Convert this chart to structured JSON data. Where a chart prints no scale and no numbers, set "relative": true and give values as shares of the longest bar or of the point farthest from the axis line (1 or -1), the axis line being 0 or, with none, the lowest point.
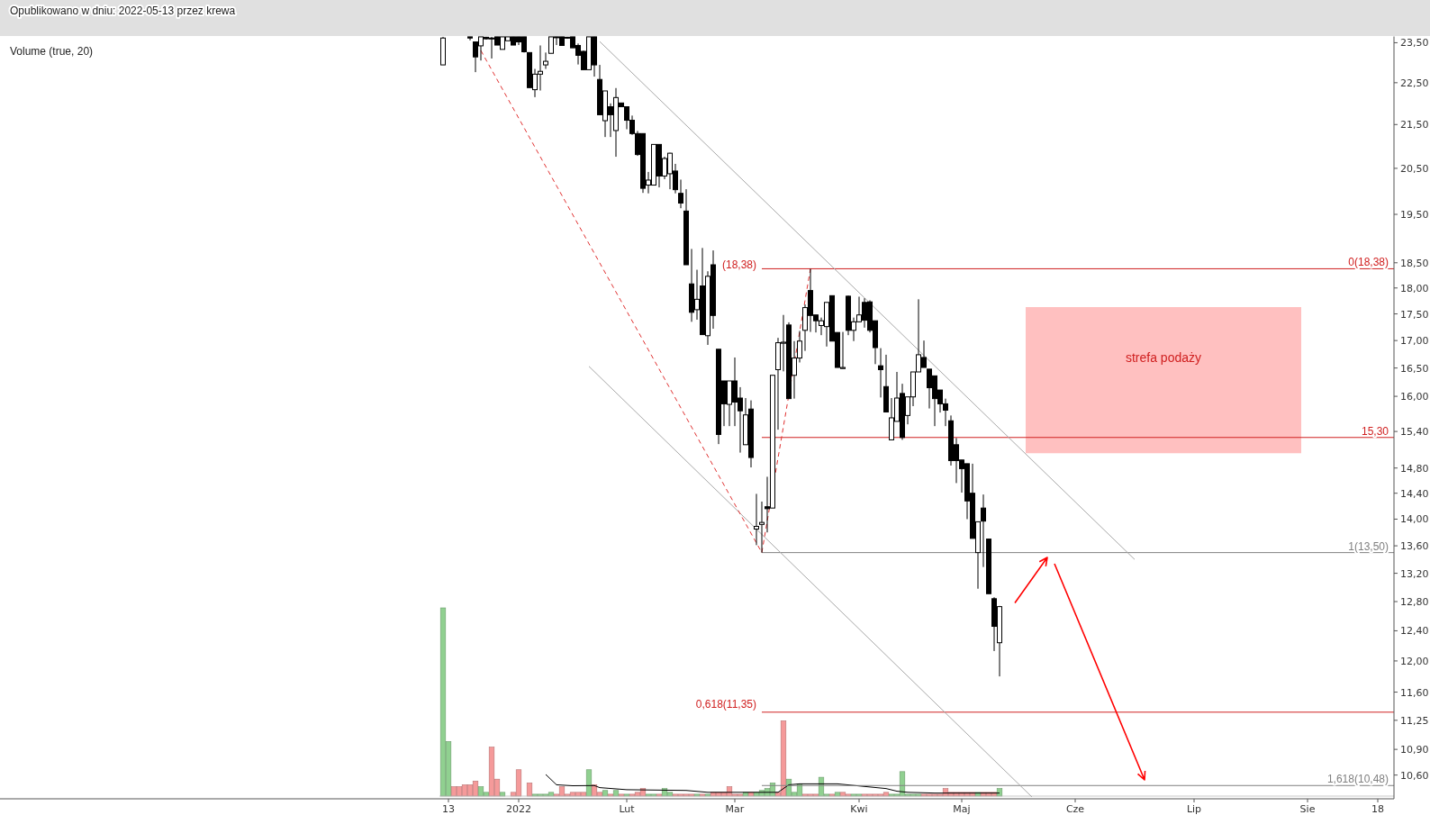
{
  "chart_data": [
    {
      "type": "candlestick",
      "log": "y",
      "grid": false,
      "ylim": [
        10.33,
        23.66
      ],
      "categories": [
        null,
        "13",
        null,
        null,
        null,
        null,
        null,
        null,
        null,
        null,
        null,
        null,
        null,
        null,
        "2022",
        null,
        null,
        null,
        null,
        null,
        null,
        null,
        null,
        null,
        null,
        null,
        null,
        null,
        null,
        null,
        null,
        null,
        null,
        null,
        "Lut",
        null,
        null,
        null,
        null,
        null,
        null,
        null,
        null,
        null,
        null,
        null,
        null,
        null,
        null,
        null,
        null,
        null,
        null,
        null,
        "Mar",
        null,
        null,
        null,
        null,
        null,
        null,
        null,
        null,
        null,
        null,
        null,
        null,
        null,
        null,
        null,
        null,
        null,
        null,
        null,
        null,
        null,
        null,
        "Kwi",
        null,
        null,
        null,
        null,
        null,
        null,
        null,
        null,
        null,
        null,
        null,
        null,
        null,
        null,
        null,
        null,
        null,
        null,
        "Maj",
        null,
        null,
        null,
        null,
        null,
        null,
        null,
        null,
        null,
        null,
        null,
        null,
        null,
        null,
        null,
        null,
        null,
        null,
        null,
        null,
        "Cze",
        null,
        null,
        null,
        null,
        null,
        null,
        null,
        null,
        null,
        null,
        null,
        null,
        null,
        null,
        null,
        null,
        null,
        null,
        null,
        null,
        null,
        "Lip",
        null,
        null,
        null,
        null,
        null,
        null,
        null,
        null,
        null,
        null,
        null,
        null,
        null,
        null,
        null,
        null,
        null,
        null,
        null,
        null,
        "Sie",
        null,
        null,
        null,
        null,
        null,
        null,
        null,
        null,
        null,
        null,
        null,
        null,
        "18",
        null,
        null,
        null
      ],
      "yticks": [
        {
          "value": 23.5,
          "label": "23,50"
        },
        {
          "value": 22.5,
          "label": "22,50"
        },
        {
          "value": 21.5,
          "label": "21,50"
        },
        {
          "value": 20.5,
          "label": "20,50"
        },
        {
          "value": 19.5,
          "label": "19,50"
        },
        {
          "value": 18.5,
          "label": "18,50"
        },
        {
          "value": 18,
          "label": "18,00"
        },
        {
          "value": 17.5,
          "label": "17,50"
        },
        {
          "value": 17,
          "label": "17,00"
        },
        {
          "value": 16.5,
          "label": "16,50"
        },
        {
          "value": 16,
          "label": "16,00"
        },
        {
          "value": 15.4,
          "label": "15,40"
        },
        {
          "value": 14.8,
          "label": "14,80"
        },
        {
          "value": 14.4,
          "label": "14,40"
        },
        {
          "value": 14,
          "label": "14,00"
        },
        {
          "value": 13.6,
          "label": "13,60"
        },
        {
          "value": 13.2,
          "label": "13,20"
        },
        {
          "value": 12.8,
          "label": "12,80"
        },
        {
          "value": 12.4,
          "label": "12,40"
        },
        {
          "value": 12,
          "label": "12,00"
        },
        {
          "value": 11.6,
          "label": "11,60"
        },
        {
          "value": 11.25,
          "label": "11,25"
        },
        {
          "value": 10.9,
          "label": "10,90"
        },
        {
          "value": 10.6,
          "label": "10,60"
        }
      ],
      "ohlc": [
        [
          22.94,
          23.65,
          22.94,
          23.62
        ],
        null,
        null,
        null,
        null,
        [
          23.65,
          23.65,
          23.56,
          23.62
        ],
        [
          23.52,
          23.52,
          22.76,
          23.14
        ],
        [
          23.42,
          23.65,
          23.05,
          23.65
        ],
        [
          23.64,
          23.65,
          23.58,
          23.6
        ],
        [
          23.62,
          23.65,
          23.1,
          23.6
        ],
        [
          23.65,
          23.65,
          23.44,
          23.44
        ],
        [
          23.33,
          23.65,
          23.33,
          23.65
        ],
        [
          23.55,
          23.65,
          23.55,
          23.65
        ],
        [
          23.65,
          23.65,
          23.44,
          23.44
        ],
        [
          23.65,
          23.65,
          23.44,
          23.52
        ],
        [
          23.65,
          23.65,
          23.25,
          23.27
        ],
        [
          23.25,
          23.25,
          22.38,
          22.38
        ],
        [
          22.33,
          22.84,
          22.15,
          22.71
        ],
        [
          22.71,
          23.43,
          22.31,
          22.78
        ],
        [
          22.94,
          23.25,
          22.84,
          23.03
        ],
        [
          23.23,
          23.65,
          23.23,
          23.65
        ],
        [
          23.65,
          23.65,
          23.44,
          23.64
        ],
        [
          23.65,
          23.65,
          23.43,
          23.43
        ],
        [
          23.64,
          23.65,
          23.6,
          23.62
        ],
        [
          23.65,
          23.65,
          23.37,
          23.37
        ],
        [
          23.43,
          23.48,
          22.95,
          23.18
        ],
        [
          23.28,
          23.3,
          22.82,
          22.82
        ],
        [
          22.82,
          23.65,
          22.82,
          23.65
        ],
        [
          23.65,
          23.65,
          22.65,
          22.94
        ],
        [
          22.58,
          22.94,
          21.73,
          21.73
        ],
        [
          21.59,
          22.3,
          21.21,
          22.3
        ],
        [
          21.92,
          22.0,
          21.21,
          21.73
        ],
        [
          21.36,
          22.37,
          20.76,
          22.14
        ],
        [
          22.01,
          22.01,
          21.92,
          21.92
        ],
        [
          21.92,
          21.92,
          21.39,
          21.6
        ],
        [
          21.6,
          21.71,
          21.26,
          21.29
        ],
        [
          21.29,
          21.35,
          20.78,
          20.81
        ],
        [
          21.29,
          21.29,
          19.96,
          20.06
        ],
        [
          20.13,
          20.42,
          19.95,
          20.24
        ],
        [
          20.13,
          21.04,
          20.13,
          21.04
        ],
        [
          21.04,
          21.04,
          20.08,
          20.33
        ],
        [
          20.33,
          20.76,
          20.26,
          20.72
        ],
        [
          20.38,
          20.85,
          20.04,
          20.84
        ],
        [
          20.44,
          20.6,
          19.95,
          20.03
        ],
        [
          19.95,
          20.25,
          19.63,
          19.74
        ],
        [
          19.57,
          20.04,
          18.46,
          18.46
        ],
        [
          18.08,
          18.78,
          17.35,
          17.53
        ],
        [
          17.58,
          18.36,
          17.39,
          17.78
        ],
        [
          18.04,
          18.8,
          17.11,
          17.11
        ],
        [
          17.09,
          18.33,
          16.92,
          18.23
        ],
        [
          18.46,
          18.75,
          17.22,
          17.47
        ],
        [
          16.84,
          16.84,
          15.19,
          15.35
        ],
        [
          16.27,
          16.27,
          15.49,
          15.87
        ],
        [
          15.86,
          16.27,
          15.49,
          16.27
        ],
        [
          16.27,
          16.69,
          15.49,
          15.9
        ],
        [
          15.97,
          16.16,
          15.05,
          15.75
        ],
        [
          15.18,
          15.97,
          15.18,
          15.68
        ],
        [
          15.78,
          15.93,
          14.81,
          14.97
        ],
        [
          13.85,
          14.39,
          13.61,
          13.89
        ],
        [
          13.92,
          14.27,
          13.5,
          13.95
        ],
        [
          14.19,
          14.66,
          13.8,
          14.16
        ],
        [
          14.17,
          16.37,
          14.17,
          16.37
        ],
        [
          16.47,
          17.05,
          15.43,
          16.96
        ],
        [
          16.95,
          17.48,
          16.44,
          16.97
        ],
        [
          17.29,
          17.34,
          15.96,
          15.96
        ],
        [
          16.37,
          16.99,
          15.96,
          16.68
        ],
        [
          16.68,
          17.18,
          16.6,
          16.99
        ],
        [
          17.19,
          17.68,
          16.81,
          17.62
        ],
        [
          17.95,
          18.38,
          17.16,
          17.47
        ],
        [
          17.48,
          17.48,
          17.15,
          17.37
        ],
        [
          17.28,
          17.43,
          17.1,
          17.37
        ],
        [
          17.26,
          17.72,
          16.89,
          17.72
        ],
        [
          17.85,
          17.85,
          16.99,
          16.99
        ],
        [
          17.15,
          17.15,
          16.51,
          16.51
        ],
        [
          16.49,
          17.16,
          16.49,
          16.51
        ],
        [
          17.84,
          17.85,
          17.1,
          17.19
        ],
        [
          17.19,
          17.43,
          16.99,
          17.35
        ],
        [
          17.35,
          17.83,
          17.35,
          17.48
        ],
        [
          17.72,
          17.8,
          17.24,
          17.38
        ],
        [
          17.73,
          17.76,
          17.15,
          17.19
        ],
        [
          17.37,
          17.37,
          16.57,
          16.87
        ],
        [
          16.54,
          16.86,
          15.98,
          16.47
        ],
        [
          16.17,
          16.74,
          15.73,
          15.73
        ],
        [
          15.26,
          15.97,
          15.26,
          15.63
        ],
        [
          15.57,
          16.43,
          15.57,
          15.97
        ],
        [
          16.05,
          16.22,
          15.26,
          15.3
        ],
        [
          15.67,
          15.99,
          15.52,
          15.99
        ],
        [
          15.99,
          16.43,
          15.83,
          16.43
        ],
        [
          16.43,
          17.78,
          16.43,
          16.74
        ],
        [
          16.69,
          17.0,
          16.51,
          16.51
        ],
        [
          16.48,
          16.48,
          15.79,
          16.15
        ],
        [
          16.36,
          16.36,
          15.49,
          15.96
        ],
        [
          16.11,
          16.11,
          15.72,
          15.87
        ],
        [
          15.87,
          15.96,
          15.49,
          15.76
        ],
        [
          15.58,
          15.67,
          14.84,
          14.92
        ],
        [
          15.18,
          15.29,
          14.56,
          14.92
        ],
        [
          14.93,
          14.93,
          14.41,
          14.79
        ],
        [
          14.87,
          14.87,
          14.0,
          14.28
        ],
        [
          14.4,
          14.87,
          13.71,
          13.71
        ],
        [
          13.5,
          13.96,
          12.98,
          13.96
        ],
        [
          14.17,
          14.38,
          13.29,
          13.97
        ],
        [
          13.7,
          13.7,
          12.91,
          12.91
        ],
        [
          12.84,
          12.86,
          12.13,
          12.46
        ],
        [
          12.24,
          12.74,
          11.8,
          12.73
        ],
        null,
        null,
        null,
        null,
        null,
        null,
        null,
        null,
        null,
        null,
        null,
        null,
        null,
        null,
        null,
        null,
        null,
        null,
        null,
        null,
        null,
        null,
        null,
        null,
        null,
        null,
        null,
        null,
        null,
        null,
        null,
        null,
        null,
        null,
        null,
        null,
        null,
        null,
        null,
        null,
        null,
        null,
        null,
        null,
        null,
        null,
        null,
        null,
        null,
        null,
        null,
        null,
        null,
        null,
        null,
        null,
        null,
        null,
        null,
        null,
        null,
        null,
        null,
        null,
        null,
        null,
        null,
        null,
        null,
        null,
        null,
        null,
        null
      ],
      "series": [
        {
          "type": "line",
          "color": "#a8a8a8",
          "values": [
            null,
            null,
            null,
            null,
            null,
            null,
            null,
            null,
            null,
            null,
            null,
            null,
            null,
            null,
            null,
            null,
            null,
            null,
            null,
            null,
            null,
            null,
            null,
            null,
            null,
            null,
            null,
            null,
            null,
            23.53,
            null,
            null,
            null,
            null,
            null,
            null,
            null,
            null,
            null,
            null,
            null,
            null,
            null,
            null,
            null,
            null,
            null,
            null,
            null,
            null,
            null,
            null,
            null,
            null,
            null,
            null,
            null,
            null,
            null,
            null,
            null,
            null,
            null,
            null,
            null,
            null,
            null,
            null,
            null,
            null,
            null,
            null,
            null,
            null,
            null,
            null,
            null,
            null,
            null,
            null,
            null,
            null,
            null,
            null,
            null,
            null,
            null,
            null,
            null,
            null,
            null,
            null,
            null,
            null,
            null,
            null,
            null,
            null,
            null,
            null,
            null,
            null,
            null,
            null,
            null,
            null,
            null,
            null,
            null,
            null,
            null,
            null,
            null,
            null,
            null,
            null,
            null,
            null,
            null,
            null,
            null,
            null,
            null,
            null,
            null,
            null,
            null,
            null,
            13.4,
            null,
            null,
            null,
            null,
            null,
            null,
            null,
            null,
            null,
            null,
            null,
            null,
            null,
            null,
            null,
            null,
            null,
            null,
            null,
            null,
            null,
            null,
            null,
            null,
            null,
            null,
            null,
            null,
            null,
            null,
            null,
            null,
            null,
            null,
            null,
            null,
            null,
            null,
            null,
            null,
            null,
            null,
            null,
            null,
            null,
            null,
            null,
            null
          ]
        },
        {
          "type": "line",
          "color": "#a8a8a8",
          "values": [
            null,
            null,
            null,
            null,
            null,
            null,
            null,
            null,
            null,
            null,
            null,
            null,
            null,
            null,
            null,
            null,
            null,
            null,
            null,
            null,
            null,
            null,
            null,
            null,
            null,
            null,
            null,
            16.53,
            null,
            null,
            null,
            null,
            null,
            null,
            null,
            null,
            null,
            null,
            null,
            null,
            null,
            null,
            null,
            null,
            null,
            null,
            null,
            null,
            null,
            null,
            null,
            null,
            null,
            null,
            null,
            null,
            null,
            null,
            null,
            null,
            null,
            null,
            null,
            null,
            null,
            null,
            null,
            null,
            null,
            null,
            null,
            null,
            null,
            null,
            null,
            null,
            null,
            null,
            null,
            null,
            null,
            null,
            null,
            null,
            null,
            null,
            null,
            null,
            null,
            null,
            null,
            null,
            null,
            null,
            null,
            null,
            null,
            null,
            null,
            null,
            null,
            null,
            null,
            null,
            null,
            null,
            null,
            null,
            null,
            10.35,
            null,
            null,
            null,
            null,
            null,
            null,
            null,
            null,
            null,
            null,
            null,
            null,
            null,
            null,
            null,
            null,
            null,
            null,
            null,
            null,
            null,
            null,
            null,
            null,
            null,
            null,
            null,
            null,
            null,
            null,
            null,
            null,
            null,
            null,
            null,
            null,
            null,
            null,
            null,
            null,
            null,
            null,
            null,
            null,
            null,
            null,
            null,
            null,
            null,
            null,
            null,
            null,
            null,
            null,
            null,
            null,
            null,
            null,
            null,
            null,
            null,
            null,
            null,
            null,
            null,
            null,
            null
          ]
        },
        {
          "type": "line",
          "color": "#e03030",
          "line_style": "dashed",
          "values": [
            null,
            null,
            null,
            null,
            null,
            null,
            null,
            23.3,
            null,
            null,
            null,
            null,
            null,
            null,
            null,
            null,
            null,
            null,
            null,
            null,
            null,
            null,
            null,
            null,
            null,
            null,
            null,
            null,
            null,
            null,
            null,
            null,
            null,
            null,
            null,
            null,
            null,
            null,
            null,
            null,
            null,
            null,
            null,
            null,
            null,
            null,
            null,
            null,
            null,
            null,
            null,
            null,
            null,
            null,
            null,
            null,
            null,
            null,
            null,
            13.5,
            null,
            null,
            null,
            null,
            null,
            null,
            null,
            null,
            18.38,
            null,
            null,
            null,
            null,
            null,
            null,
            null,
            null,
            null,
            null,
            null,
            null,
            null,
            null,
            null,
            null,
            null,
            null,
            null,
            null,
            null,
            null,
            null,
            null,
            null,
            null,
            null,
            null,
            null,
            null,
            null,
            null,
            null,
            null,
            null,
            null,
            null,
            null,
            null,
            null,
            null,
            null,
            null,
            null,
            null,
            null,
            null,
            null,
            null,
            null,
            null,
            null,
            null,
            null,
            null,
            null,
            null,
            null,
            null,
            null,
            null,
            null,
            null,
            null,
            null,
            null,
            null,
            null,
            null,
            null,
            null,
            null,
            null,
            null,
            null,
            null,
            null,
            null,
            null,
            null,
            null,
            null,
            null,
            null,
            null,
            null,
            null,
            null,
            null,
            null,
            null,
            null,
            null,
            null,
            null,
            null,
            null,
            null,
            null,
            null,
            null,
            null,
            null,
            null,
            null,
            null,
            null,
            null
          ]
        }
      ],
      "ref_lines": [
        {
          "axis": "y",
          "value": 18.38,
          "label": "0(18,38)",
          "color": "#d02020"
        },
        {
          "axis": "y",
          "value": 15.3,
          "label": "15,30",
          "color": "#d02020"
        },
        {
          "axis": "y",
          "value": 13.5,
          "label": "1(13,50)",
          "color": "#808080"
        },
        {
          "axis": "y",
          "value": 11.35,
          "label": null,
          "color": "#d02020"
        },
        {
          "axis": "y",
          "value": 10.48,
          "label": "1,618(10,48)",
          "color": "#808080"
        }
      ],
      "bands": [
        {
          "axis": "y",
          "from": 15.04,
          "to": 17.63,
          "label": "strefa podaży",
          "color": "#ffc0c0"
        }
      ],
      "annotations": [
        "Opublikowano w dniu: 2022-05-13 przez krewa",
        "Volume (true, 20)",
        "(18,38)",
        "0,618(11,35)"
      ]
    },
    {
      "type": "bar",
      "relative": true,
      "categories": [
        null,
        null,
        null,
        null,
        null,
        null,
        null,
        null,
        null,
        null,
        null,
        null,
        null,
        null,
        null,
        null,
        null,
        null,
        null,
        null,
        null,
        null,
        null,
        null,
        null,
        null,
        null,
        null,
        null,
        null,
        null,
        null,
        null,
        null,
        null,
        null,
        null,
        null,
        null,
        null,
        null,
        null,
        null,
        null,
        null,
        null,
        null,
        null,
        null,
        null,
        null,
        null,
        null,
        null,
        null,
        null,
        null,
        null,
        null,
        null,
        null,
        null,
        null,
        null,
        null,
        null,
        null,
        null,
        null,
        null,
        null,
        null,
        null,
        null,
        null,
        null,
        null,
        null,
        null,
        null,
        null,
        null,
        null,
        null,
        null,
        null,
        null,
        null,
        null,
        null,
        null,
        null,
        null,
        null,
        null,
        null,
        null,
        null,
        null,
        null,
        null,
        null,
        null,
        null,
        null,
        null,
        null,
        null,
        null,
        null,
        null,
        null,
        null,
        null,
        null,
        null,
        null,
        null,
        null,
        null,
        null,
        null,
        null,
        null,
        null,
        null,
        null,
        null,
        null,
        null,
        null,
        null,
        null,
        null,
        null,
        null,
        null,
        null,
        null,
        null,
        null,
        null,
        null,
        null,
        null,
        null,
        null,
        null,
        null,
        null,
        null,
        null,
        null,
        null,
        null,
        null,
        null,
        null,
        null,
        null,
        null,
        null,
        null,
        null,
        null,
        null,
        null,
        null,
        null,
        null,
        null,
        null,
        null,
        null,
        null,
        null,
        null
      ],
      "values": [
        1,
        0.29,
        0.05,
        0.05,
        0.06,
        0.06,
        0.08,
        0.05,
        0.02,
        0.26,
        0.09,
        0.02,
        null,
        0.02,
        0.14,
        null,
        0.07,
        0.01,
        0.01,
        0.01,
        0.02,
        0.01,
        0.05,
        0.01,
        0.02,
        0.02,
        0.02,
        0.14,
        0.06,
        0.02,
        0.03,
        0.01,
        0.03,
        0.01,
        0.01,
        0.01,
        0.02,
        0.04,
        0.01,
        0.01,
        0.01,
        0.04,
        0.02,
        0.01,
        0.01,
        0.01,
        0.01,
        0.01,
        0.01,
        0.01,
        0.02,
        0.02,
        0.02,
        0.05,
        0.01,
        0.01,
        0.02,
        0.02,
        0.02,
        0.03,
        0.04,
        0.07,
        0.02,
        0.4,
        0.09,
        0.02,
        0.065,
        0.01,
        0.01,
        0.01,
        0.1,
        0.01,
        0.01,
        0.02,
        0.02,
        0.01,
        0.01,
        0.01,
        0.01,
        0.01,
        0.01,
        0.01,
        0.02,
        0.01,
        0.01,
        0.13,
        0.01,
        0.01,
        0.01,
        0.01,
        0.01,
        0.01,
        0.01,
        0.04,
        0.02,
        0.02,
        0.02,
        0.02,
        0.02,
        0.02,
        0.02,
        0.02,
        0.02,
        0.04,
        null,
        null,
        null,
        null,
        null,
        null,
        null,
        null,
        null,
        null,
        null,
        null,
        null,
        null,
        null,
        null,
        null,
        null,
        null,
        null,
        null,
        null,
        null,
        null,
        null,
        null,
        null,
        null,
        null,
        null,
        null,
        null,
        null,
        null,
        null,
        null,
        null,
        null,
        null,
        null,
        null,
        null,
        null,
        null,
        null,
        null,
        null,
        null,
        null,
        null,
        null,
        null,
        null,
        null,
        null,
        null,
        null,
        null,
        null,
        null,
        null,
        null,
        null,
        null,
        null,
        null,
        null,
        null,
        null,
        null,
        null,
        null,
        null
      ],
      "colors": [
        "#90d090",
        "#90d090",
        "#f59a9a",
        "#f59a9a",
        "#f59a9a",
        "#f59a9a",
        "#f59a9a",
        "#90d090",
        "#90d090",
        "#f59a9a",
        "#f59a9a",
        "#90d090",
        null,
        "#f59a9a",
        "#f59a9a",
        null,
        "#f59a9a",
        "#90d090",
        "#90d090",
        "#90d090",
        "#90d090",
        "#f59a9a",
        "#f59a9a",
        "#f59a9a",
        "#f59a9a",
        "#f59a9a",
        "#f59a9a",
        "#90d090",
        "#f59a9a",
        "#f59a9a",
        "#90d090",
        "#f59a9a",
        "#90d090",
        "#f59a9a",
        "#90d090",
        "#f59a9a",
        "#f59a9a",
        "#f59a9a",
        "#90d090",
        "#90d090",
        "#f59a9a",
        "#90d090",
        "#90d090",
        "#f59a9a",
        "#f59a9a",
        "#f59a9a",
        "#f59a9a",
        "#90d090",
        "#f59a9a",
        "#90d090",
        "#f59a9a",
        "#f59a9a",
        "#f59a9a",
        "#f59a9a",
        "#f59a9a",
        "#f59a9a",
        "#90d090",
        "#f59a9a",
        "#90d090",
        "#90d090",
        "#90d090",
        "#90d090",
        "#f59a9a",
        "#f59a9a",
        "#90d090",
        "#90d090",
        "#90d090",
        "#f59a9a",
        "#f59a9a",
        "#f59a9a",
        "#90d090",
        "#90d090",
        "#f59a9a",
        "#90d090",
        "#f59a9a",
        "#f59a9a",
        "#90d090",
        "#90d090",
        "#f59a9a",
        "#f59a9a",
        "#f59a9a",
        "#f59a9a",
        "#f59a9a",
        "#90d090",
        "#90d090",
        "#90d090",
        "#90d090",
        "#90d090",
        "#90d090",
        "#f59a9a",
        "#f59a9a",
        "#f59a9a",
        "#f59a9a",
        "#f59a9a",
        "#f59a9a",
        "#f59a9a",
        "#f59a9a",
        "#f59a9a",
        "#f59a9a",
        "#90d090",
        "#f59a9a",
        "#f59a9a",
        "#f59a9a",
        "#90d090",
        null,
        null,
        null,
        null,
        null,
        null,
        null,
        null,
        null,
        null,
        null,
        null,
        null,
        null,
        null,
        null,
        null,
        null,
        null,
        null,
        null,
        null,
        null,
        null,
        null,
        null,
        null,
        null,
        null,
        null,
        null,
        null,
        null,
        null,
        null,
        null,
        null,
        null,
        null,
        null,
        null,
        null,
        null,
        null,
        null,
        null,
        null,
        null,
        null,
        null,
        null,
        null,
        null,
        null,
        null,
        null,
        null,
        null,
        null,
        null,
        null,
        null,
        null,
        null,
        null,
        null,
        null,
        null,
        null,
        null,
        null,
        null,
        null
      ],
      "series": [
        {
          "type": "line",
          "color": "#000000",
          "values": [
            null,
            null,
            null,
            null,
            null,
            null,
            null,
            null,
            null,
            null,
            null,
            null,
            null,
            null,
            null,
            null,
            null,
            null,
            null,
            0.115,
            null,
            0.06,
            null,
            null,
            0.055,
            null,
            null,
            null,
            0.056,
            0.045,
            null,
            null,
            null,
            null,
            0.034,
            null,
            null,
            null,
            null,
            null,
            null,
            null,
            null,
            null,
            null,
            0.03,
            null,
            null,
            null,
            0.02,
            null,
            null,
            null,
            null,
            null,
            null,
            null,
            null,
            null,
            0.02,
            null,
            null,
            0.02,
            null,
            0.06,
            null,
            0.065,
            null,
            null,
            null,
            null,
            null,
            null,
            0.065,
            null,
            null,
            null,
            null,
            null,
            null,
            null,
            null,
            0.04,
            null,
            0.026,
            null,
            0.02,
            null,
            null,
            null,
            null,
            0.016,
            null,
            null,
            null,
            null,
            null,
            null,
            null,
            null,
            null,
            null,
            null,
            0.016,
            null,
            null,
            null,
            null,
            null,
            null,
            null,
            null,
            null,
            null,
            null,
            null,
            null,
            null,
            null,
            null,
            null,
            null,
            null,
            null,
            null,
            null,
            null,
            null,
            null,
            null,
            null,
            null,
            null,
            null,
            null,
            null,
            null,
            null,
            null,
            null,
            null,
            null,
            null,
            null,
            null,
            null,
            null,
            null,
            null,
            null,
            null,
            null,
            null,
            null,
            null,
            null,
            null,
            null,
            null,
            null,
            null,
            null,
            null,
            null,
            null,
            null,
            null,
            null,
            null,
            null,
            null,
            null,
            null,
            null,
            null,
            null,
            null
          ]
        }
      ]
    }
  ]
}
